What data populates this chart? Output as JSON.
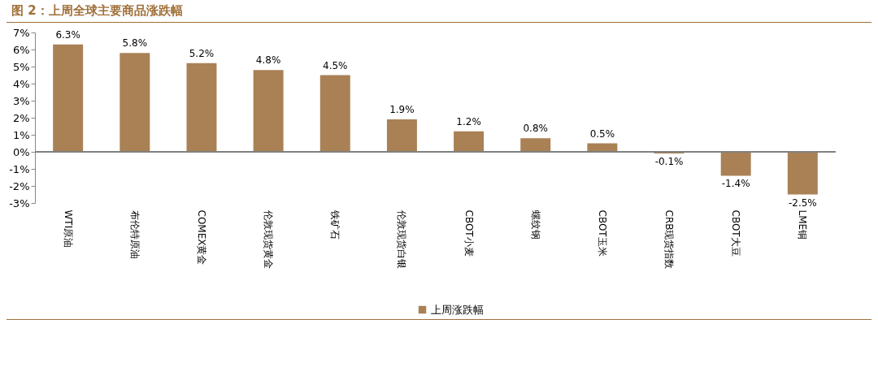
{
  "chart_data": {
    "type": "bar",
    "title": "图 2：上周全球主要商品涨跌幅",
    "categories": [
      "WTI原油",
      "布伦特原油",
      "COMEX黄金",
      "伦敦现货黄金",
      "铁矿石",
      "伦敦现货白银",
      "CBOT小麦",
      "螺纹钢",
      "CBOT玉米",
      "CRB现货指数",
      "CBOT大豆",
      "LME铜"
    ],
    "series": [
      {
        "name": "上周涨跌幅",
        "color": "#a98155",
        "values": [
          6.3,
          5.8,
          5.2,
          4.8,
          4.5,
          1.9,
          1.2,
          0.8,
          0.5,
          -0.1,
          -1.4,
          -2.5
        ],
        "value_labels": [
          "6.3%",
          "5.8%",
          "5.2%",
          "4.8%",
          "4.5%",
          "1.9%",
          "1.2%",
          "0.8%",
          "0.5%",
          "-0.1%",
          "-1.4%",
          "-2.5%"
        ]
      }
    ],
    "ylim": [
      -3,
      7
    ],
    "yticks": [
      {
        "value": -3,
        "label": "-3%"
      },
      {
        "value": -2,
        "label": "-2%"
      },
      {
        "value": -1,
        "label": "-1%"
      },
      {
        "value": 0,
        "label": "0%"
      },
      {
        "value": 1,
        "label": "1%"
      },
      {
        "value": 2,
        "label": "2%"
      },
      {
        "value": 3,
        "label": "3%"
      },
      {
        "value": 4,
        "label": "4%"
      },
      {
        "value": 5,
        "label": "5%"
      },
      {
        "value": 6,
        "label": "6%"
      },
      {
        "value": 7,
        "label": "7%"
      }
    ],
    "ref_lines": [
      {
        "axis": "y",
        "value": 0,
        "color": "#808080"
      }
    ],
    "grid": false,
    "legend": "bottom"
  }
}
